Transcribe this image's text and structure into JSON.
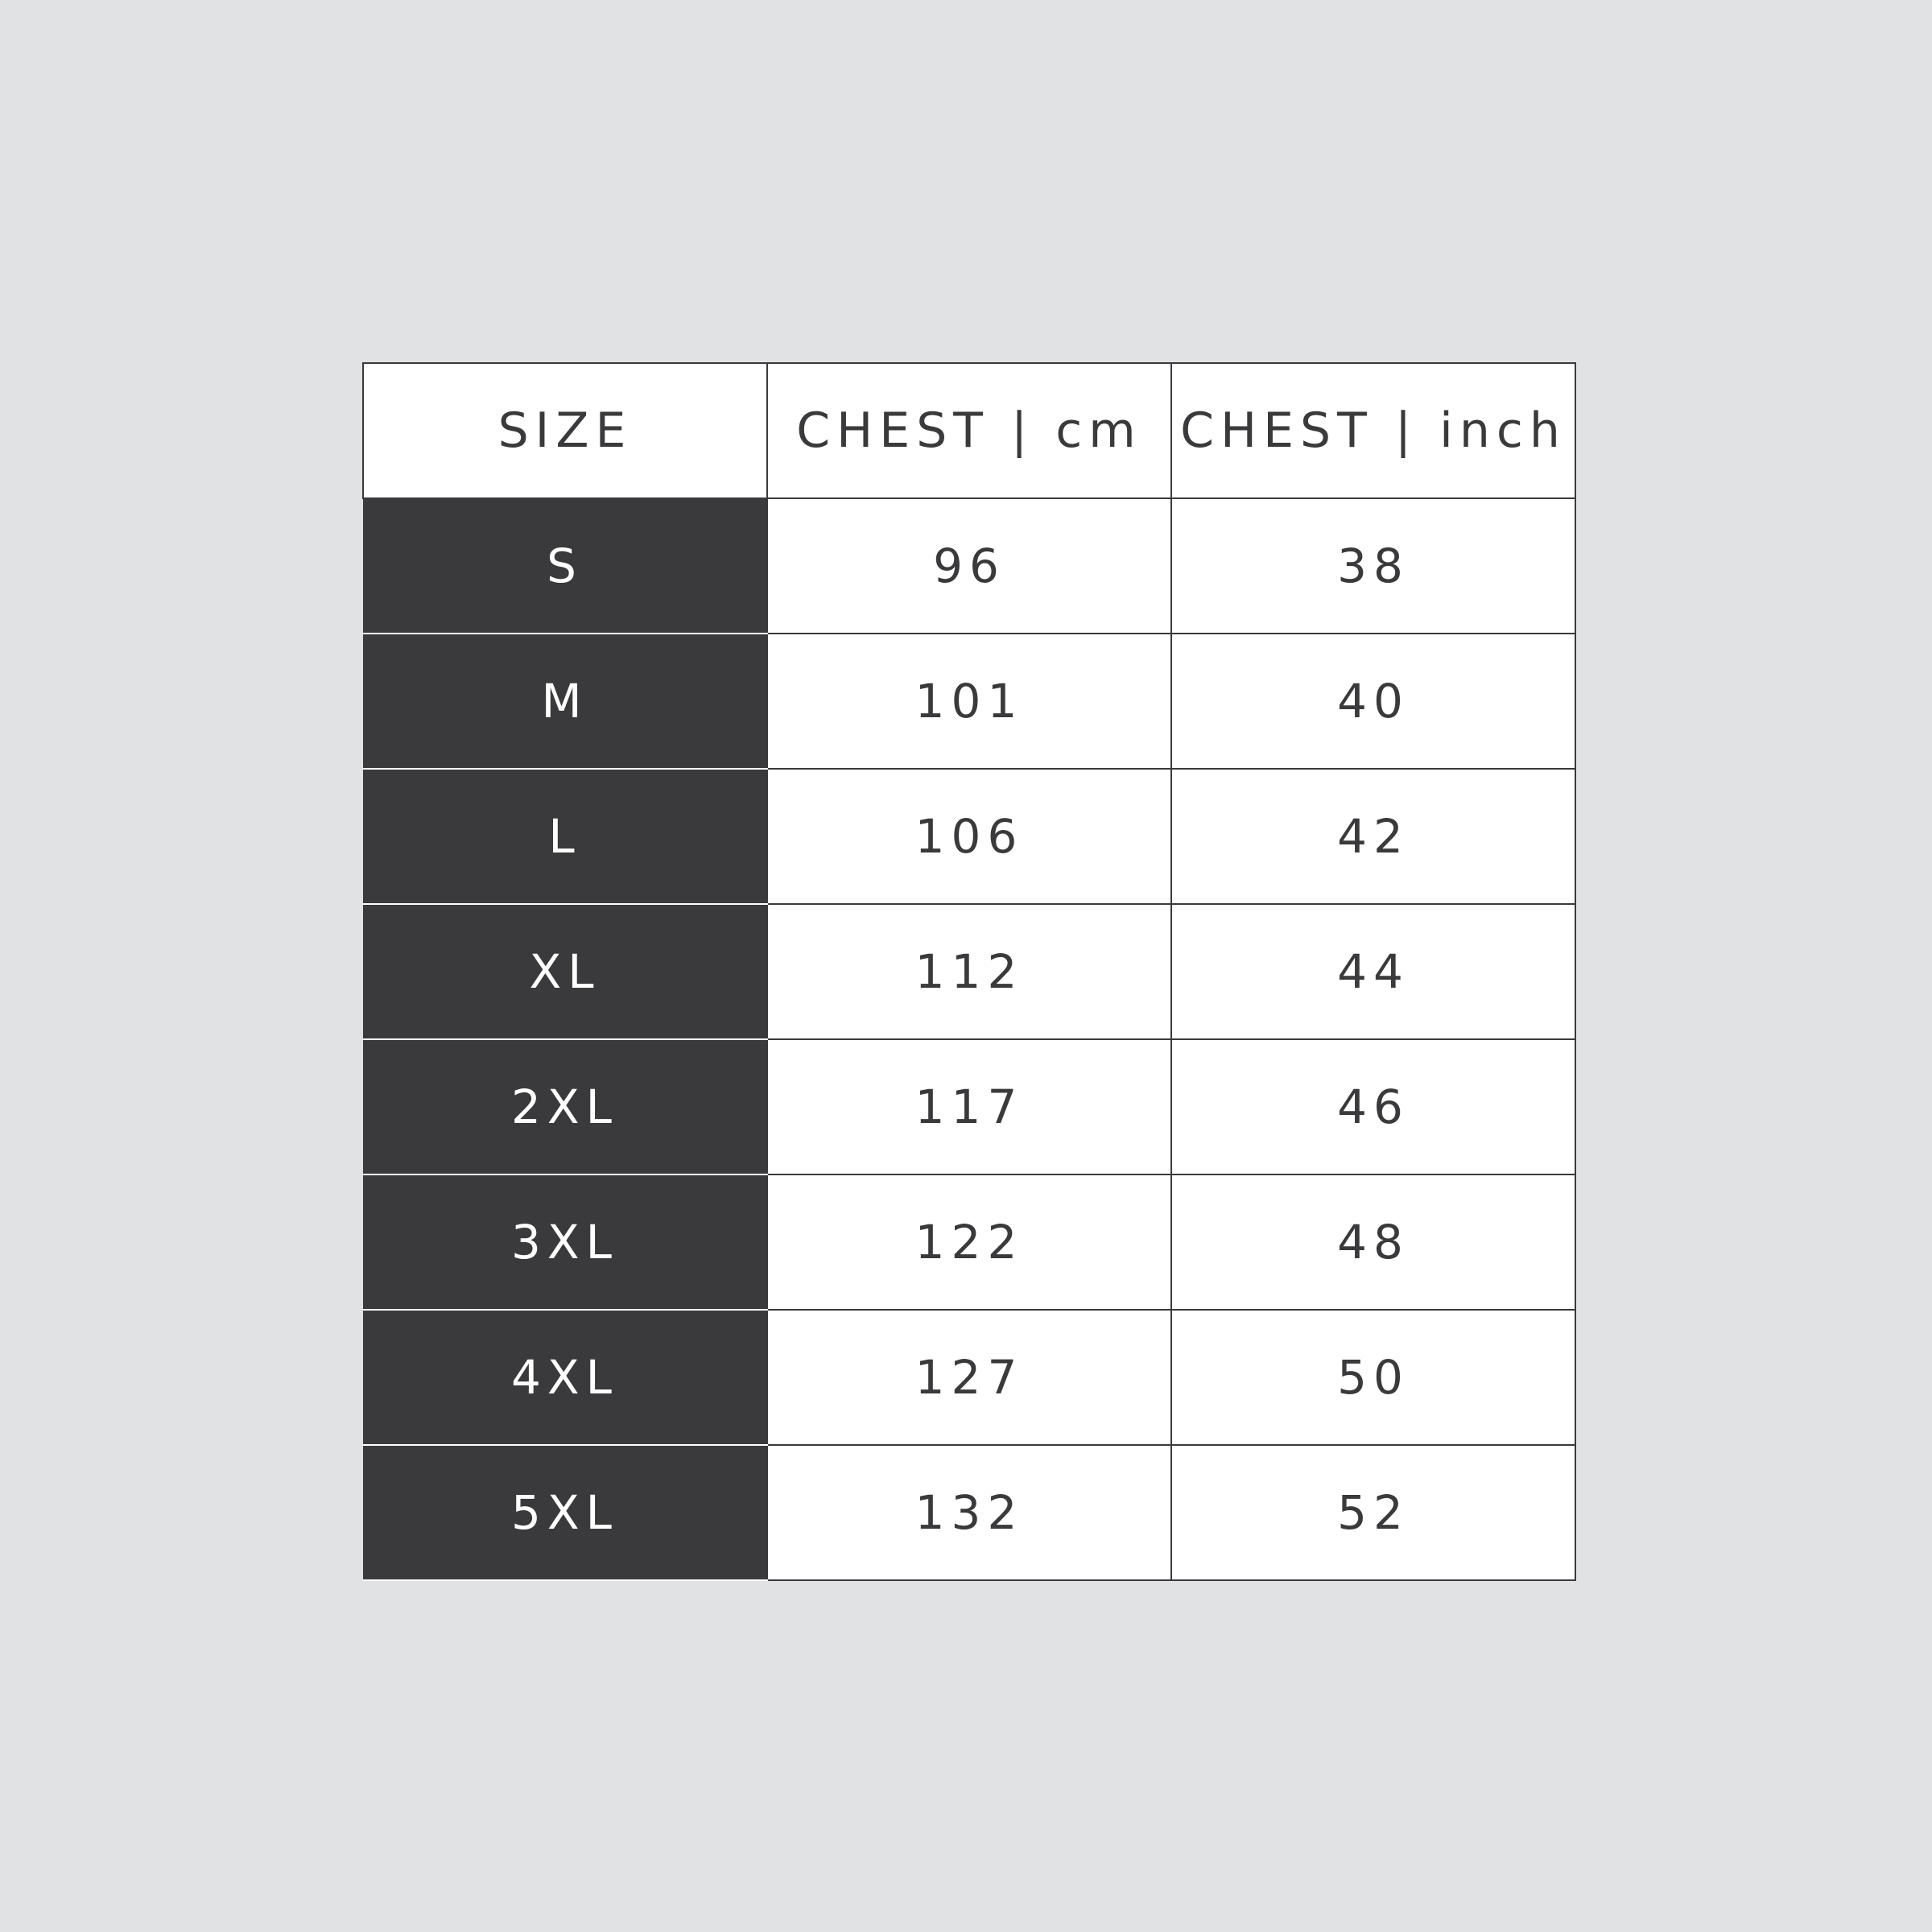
{
  "headers": [
    "SIZE",
    "CHEST | cm",
    "CHEST | inch"
  ],
  "rows": [
    {
      "size": "S",
      "cm": "96",
      "inch": "38"
    },
    {
      "size": "M",
      "cm": "101",
      "inch": "40"
    },
    {
      "size": "L",
      "cm": "106",
      "inch": "42"
    },
    {
      "size": "XL",
      "cm": "112",
      "inch": "44"
    },
    {
      "size": "2XL",
      "cm": "117",
      "inch": "46"
    },
    {
      "size": "3XL",
      "cm": "122",
      "inch": "48"
    },
    {
      "size": "4XL",
      "cm": "127",
      "inch": "50"
    },
    {
      "size": "5XL",
      "cm": "132",
      "inch": "52"
    }
  ],
  "colors": {
    "background": "#e1e2e4",
    "size_column": "#3a3a3c",
    "text": "#3a3a3c"
  }
}
